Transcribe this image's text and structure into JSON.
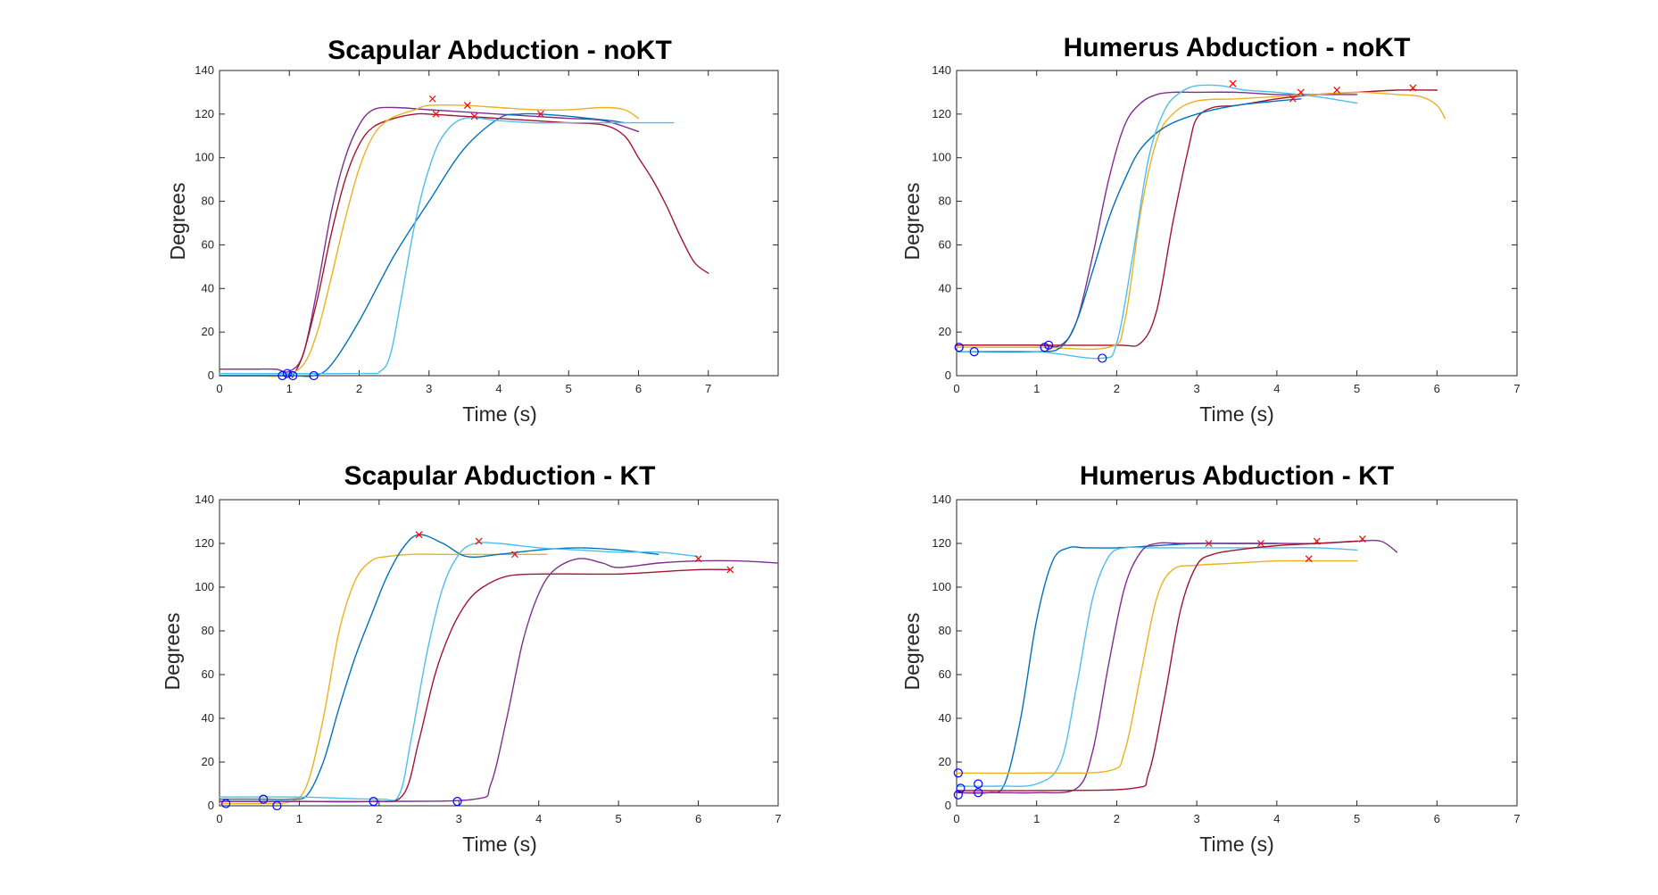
{
  "chart_data": [
    {
      "type": "line",
      "title": "Scapular Abduction - noKT",
      "xlabel": "Time (s)",
      "ylabel": "Degrees",
      "xlim": [
        0,
        8
      ],
      "ylim": [
        0,
        140
      ],
      "xticks": [
        0,
        1,
        2,
        3,
        4,
        5,
        6,
        7
      ],
      "yticks": [
        0,
        20,
        40,
        60,
        80,
        100,
        120,
        140
      ],
      "grid": false,
      "series": [
        {
          "color": "#7E2F8E",
          "x": [
            0,
            0.5,
            0.8,
            1.0,
            1.2,
            1.4,
            1.6,
            1.8,
            2.0,
            2.2,
            2.5,
            3.0,
            3.5,
            4.0,
            4.5,
            5.0,
            5.5,
            6.0
          ],
          "y": [
            3,
            3,
            3,
            2,
            10,
            40,
            75,
            100,
            115,
            122,
            123,
            122,
            121,
            120,
            119,
            118,
            117,
            112
          ],
          "onset": [
            0.97,
            1
          ],
          "peak": null
        },
        {
          "color": "#A2142F",
          "x": [
            0,
            0.5,
            1.0,
            1.05,
            1.2,
            1.4,
            1.6,
            1.8,
            2.0,
            2.2,
            2.5,
            2.8,
            3.0,
            3.5,
            4.0,
            4.5,
            5.0,
            5.5,
            5.8,
            6.0,
            6.2,
            6.4,
            6.6,
            6.8,
            7.0
          ],
          "y": [
            0,
            0,
            0,
            0,
            10,
            35,
            65,
            90,
            106,
            114,
            118,
            120,
            120,
            119,
            118,
            117,
            116,
            115,
            110,
            100,
            90,
            78,
            64,
            52,
            47
          ],
          "onset": [
            1.05,
            0
          ],
          "peak": [
            3.1,
            120
          ]
        },
        {
          "color": "#EDB120",
          "x": [
            0,
            0.5,
            0.9,
            1.2,
            1.4,
            1.6,
            1.8,
            2.0,
            2.2,
            2.4,
            2.6,
            2.8,
            3.0,
            3.5,
            4.0,
            4.5,
            5.0,
            5.5,
            5.8,
            6.0
          ],
          "y": [
            0,
            0,
            0,
            5,
            20,
            45,
            72,
            95,
            110,
            117,
            120,
            122,
            124,
            124,
            123,
            122,
            122,
            123,
            122,
            118
          ],
          "onset": [
            0.9,
            0
          ],
          "peak": [
            3.05,
            127
          ]
        },
        {
          "color": "#0072BD",
          "x": [
            0,
            1.0,
            1.35,
            1.6,
            2.0,
            2.5,
            3.0,
            3.5,
            4.0,
            4.3,
            4.6,
            5.0,
            5.3,
            5.6,
            5.8
          ],
          "y": [
            0,
            0,
            0,
            5,
            25,
            55,
            80,
            104,
            118,
            120,
            120,
            119,
            118,
            117,
            116
          ],
          "onset": [
            1.35,
            0
          ],
          "peak": [
            4.6,
            120
          ]
        },
        {
          "color": "#4DBEEE",
          "x": [
            0,
            2.0,
            2.3,
            2.45,
            2.6,
            2.8,
            3.0,
            3.2,
            3.5,
            4.0,
            4.5,
            5.0,
            5.5,
            6.0,
            6.5
          ],
          "y": [
            1,
            1,
            2,
            10,
            35,
            70,
            95,
            110,
            118,
            117,
            116,
            116,
            116,
            116,
            116
          ],
          "onset": null,
          "peak": null
        }
      ],
      "extra_peaks": [
        [
          3.55,
          124
        ],
        [
          3.65,
          119
        ]
      ]
    },
    {
      "type": "line",
      "title": "Humerus Abduction - noKT",
      "xlabel": "Time (s)",
      "ylabel": "Degrees",
      "xlim": [
        0,
        7
      ],
      "ylim": [
        0,
        140
      ],
      "xticks": [
        0,
        1,
        2,
        3,
        4,
        5,
        6,
        7
      ],
      "yticks": [
        0,
        20,
        40,
        60,
        80,
        100,
        120,
        140
      ],
      "grid": false,
      "series": [
        {
          "color": "#7E2F8E",
          "x": [
            0,
            1.0,
            1.3,
            1.5,
            1.7,
            1.9,
            2.1,
            2.3,
            2.5,
            2.7,
            3.0,
            3.5,
            4.0,
            4.5,
            5.0
          ],
          "y": [
            14,
            14,
            14,
            25,
            55,
            90,
            115,
            125,
            129,
            130,
            130,
            130,
            129,
            129,
            129
          ],
          "onset": [
            0.03,
            13
          ],
          "peak": null
        },
        {
          "color": "#A2142F",
          "x": [
            0,
            1.0,
            2.0,
            2.3,
            2.5,
            2.7,
            2.9,
            3.0,
            3.2,
            3.5,
            4.0,
            4.5,
            5.0,
            5.5,
            6.0
          ],
          "y": [
            14,
            14,
            14,
            15,
            30,
            70,
            105,
            118,
            123,
            124,
            127,
            129,
            130,
            131,
            131
          ],
          "onset": [
            1.15,
            14
          ],
          "peak": [
            5.7,
            132
          ]
        },
        {
          "color": "#EDB120",
          "x": [
            0,
            1.0,
            1.9,
            2.1,
            2.3,
            2.5,
            2.7,
            3.0,
            3.5,
            4.0,
            4.5,
            5.0,
            5.5,
            5.8,
            6.0,
            6.1
          ],
          "y": [
            13,
            13,
            13,
            25,
            75,
            108,
            120,
            126,
            127,
            128,
            129,
            130,
            129,
            128,
            124,
            118
          ],
          "onset": [
            1.1,
            13
          ],
          "peak": [
            4.75,
            131
          ]
        },
        {
          "color": "#0072BD",
          "x": [
            0,
            1.0,
            1.3,
            1.5,
            1.7,
            1.9,
            2.1,
            2.3,
            2.6,
            3.0,
            3.5,
            4.0,
            4.3
          ],
          "y": [
            11,
            11,
            13,
            25,
            48,
            72,
            90,
            104,
            114,
            120,
            124,
            126,
            127
          ],
          "onset": [
            0.22,
            11
          ],
          "peak": [
            4.2,
            127
          ]
        },
        {
          "color": "#4DBEEE",
          "x": [
            0,
            1.0,
            1.8,
            2.0,
            2.2,
            2.4,
            2.6,
            2.8,
            3.0,
            3.3,
            3.6,
            4.0,
            4.5,
            5.0
          ],
          "y": [
            11,
            11,
            8,
            15,
            55,
            100,
            122,
            130,
            133,
            133,
            131,
            130,
            128,
            125
          ],
          "onset": [
            1.82,
            8
          ],
          "peak": [
            3.45,
            134
          ]
        }
      ],
      "extra_peaks": [
        [
          4.3,
          130
        ]
      ]
    },
    {
      "type": "line",
      "title": "Scapular Abduction - KT",
      "xlabel": "Time (s)",
      "ylabel": "Degrees",
      "xlim": [
        0,
        7
      ],
      "ylim": [
        0,
        140
      ],
      "xticks": [
        0,
        1,
        2,
        3,
        4,
        5,
        6,
        7
      ],
      "yticks": [
        0,
        20,
        40,
        60,
        80,
        100,
        120,
        140
      ],
      "grid": false,
      "series": [
        {
          "color": "#EDB120",
          "x": [
            0,
            0.5,
            0.9,
            1.1,
            1.3,
            1.5,
            1.7,
            1.9,
            2.1,
            2.4,
            2.8,
            3.2,
            3.6,
            4.1
          ],
          "y": [
            1,
            1,
            2,
            10,
            40,
            80,
            103,
            112,
            114,
            115,
            115,
            115,
            115,
            115
          ],
          "onset": [
            0.08,
            1
          ],
          "peak": null
        },
        {
          "color": "#0072BD",
          "x": [
            0,
            0.5,
            0.9,
            1.1,
            1.3,
            1.5,
            1.7,
            1.9,
            2.1,
            2.3,
            2.5,
            2.8,
            3.1,
            3.5,
            4.0,
            4.5,
            5.0,
            5.5
          ],
          "y": [
            3,
            3,
            3,
            5,
            20,
            45,
            68,
            87,
            105,
            118,
            124,
            120,
            114,
            115,
            117,
            118,
            117,
            115
          ],
          "onset": [
            0.55,
            3
          ],
          "peak": [
            2.5,
            124
          ]
        },
        {
          "color": "#4DBEEE",
          "x": [
            0,
            1.0,
            2.0,
            2.25,
            2.4,
            2.6,
            2.8,
            3.0,
            3.2,
            3.5,
            4.0,
            4.5,
            5.0,
            5.5,
            6.0
          ],
          "y": [
            4,
            4,
            3,
            5,
            30,
            70,
            100,
            115,
            120,
            120,
            118,
            117,
            116,
            116,
            114
          ],
          "onset": [
            0.72,
            0
          ],
          "peak": [
            3.25,
            121
          ]
        },
        {
          "color": "#A2142F",
          "x": [
            0,
            1.0,
            1.9,
            2.3,
            2.5,
            2.7,
            2.9,
            3.1,
            3.3,
            3.6,
            4.0,
            4.5,
            5.0,
            5.5,
            6.0,
            6.4
          ],
          "y": [
            2,
            2,
            2,
            5,
            30,
            60,
            80,
            93,
            100,
            105,
            106,
            106,
            106,
            107,
            108,
            108
          ],
          "onset": [
            1.93,
            2
          ],
          "peak": [
            6.4,
            108
          ]
        },
        {
          "color": "#7E2F8E",
          "x": [
            0,
            1.0,
            2.0,
            3.2,
            3.4,
            3.6,
            3.8,
            4.0,
            4.2,
            4.5,
            4.8,
            5.0,
            5.5,
            6.0,
            6.5,
            7.0
          ],
          "y": [
            2,
            2,
            2,
            3,
            10,
            40,
            75,
            97,
            108,
            113,
            111,
            109,
            111,
            112,
            112,
            111
          ],
          "onset": [
            2.98,
            2
          ],
          "peak": [
            6.0,
            113
          ]
        }
      ],
      "extra_peaks": [
        [
          3.7,
          115
        ]
      ]
    },
    {
      "type": "line",
      "title": "Humerus Abduction - KT",
      "xlabel": "Time (s)",
      "ylabel": "Degrees",
      "xlim": [
        0,
        7
      ],
      "ylim": [
        0,
        140
      ],
      "xticks": [
        0,
        1,
        2,
        3,
        4,
        5,
        6,
        7
      ],
      "yticks": [
        0,
        20,
        40,
        60,
        80,
        100,
        120,
        140
      ],
      "grid": false,
      "series": [
        {
          "color": "#0072BD",
          "x": [
            0,
            0.4,
            0.6,
            0.8,
            1.0,
            1.2,
            1.4,
            1.6,
            2.0,
            2.5,
            3.0,
            3.5,
            4.0
          ],
          "y": [
            6,
            6,
            10,
            40,
            85,
            112,
            118,
            118,
            118,
            119,
            120,
            120,
            120
          ],
          "onset": [
            0.02,
            5
          ],
          "peak": null
        },
        {
          "color": "#4DBEEE",
          "x": [
            0,
            0.5,
            1.0,
            1.3,
            1.5,
            1.7,
            1.9,
            2.1,
            2.4,
            2.8,
            3.2,
            3.6,
            4.0,
            4.5,
            5.0
          ],
          "y": [
            9,
            9,
            10,
            20,
            55,
            95,
            114,
            118,
            118,
            118,
            118,
            118,
            118,
            118,
            117
          ],
          "onset": [
            0.05,
            8
          ],
          "peak": null
        },
        {
          "color": "#7E2F8E",
          "x": [
            0,
            0.5,
            1.0,
            1.5,
            1.7,
            1.9,
            2.1,
            2.3,
            2.5,
            2.8,
            3.2,
            3.6,
            4.0,
            4.5,
            5.0,
            5.3,
            5.5
          ],
          "y": [
            6,
            6,
            6,
            8,
            25,
            65,
            100,
            116,
            120,
            120,
            120,
            120,
            120,
            120,
            121,
            121,
            116
          ],
          "onset": [
            0.27,
            6
          ],
          "peak": [
            5.07,
            122
          ]
        },
        {
          "color": "#EDB120",
          "x": [
            0,
            1.0,
            1.9,
            2.1,
            2.3,
            2.5,
            2.7,
            3.0,
            3.5,
            4.0,
            4.5,
            5.0
          ],
          "y": [
            15,
            15,
            16,
            25,
            60,
            95,
            108,
            110,
            111,
            112,
            112,
            112
          ],
          "onset": [
            0.02,
            15
          ],
          "peak": [
            4.4,
            113
          ]
        },
        {
          "color": "#A2142F",
          "x": [
            0,
            1.0,
            2.2,
            2.4,
            2.6,
            2.8,
            3.0,
            3.2,
            3.5,
            4.0,
            4.5,
            5.0
          ],
          "y": [
            7,
            7,
            8,
            15,
            50,
            90,
            110,
            115,
            117,
            119,
            120,
            121
          ],
          "onset": [
            0.27,
            10
          ],
          "peak": [
            4.5,
            121
          ]
        }
      ],
      "extra_peaks": [
        [
          3.15,
          120
        ],
        [
          3.8,
          120
        ]
      ]
    }
  ]
}
